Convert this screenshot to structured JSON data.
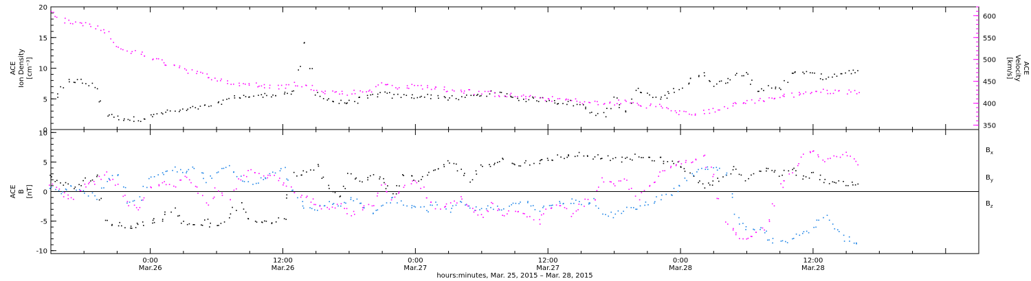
{
  "chart_data": {
    "type": "scatter",
    "x_axis": {
      "title": "hours:minutes, Mar. 25, 2015 – Mar. 28, 2015",
      "range_hours": [
        -9,
        75
      ],
      "ticks": [
        {
          "hours": 0,
          "time": "0:00",
          "date": "Mar.26"
        },
        {
          "hours": 12,
          "time": "12:00",
          "date": "Mar.26"
        },
        {
          "hours": 24,
          "time": "0:00",
          "date": "Mar.27"
        },
        {
          "hours": 36,
          "time": "12:00",
          "date": "Mar.27"
        },
        {
          "hours": 48,
          "time": "0:00",
          "date": "Mar.28"
        },
        {
          "hours": 60,
          "time": "12:00",
          "date": "Mar.28"
        }
      ]
    },
    "panels": [
      {
        "ylabel_lines": [
          "ACE",
          "Ion Density",
          "[cm⁻³]"
        ],
        "ylim": [
          0,
          20
        ],
        "yticks": [
          0,
          5,
          10,
          15,
          20
        ],
        "y2label_lines": [
          "ACE",
          "Velocity",
          "[km/s]"
        ],
        "y2lim": [
          340,
          620
        ],
        "y2ticks": [
          350,
          400,
          450,
          500,
          550,
          600
        ],
        "series": [
          {
            "axis": "left",
            "color": "#000000",
            "x": [
              -8.5,
              -7.5,
              -6.5,
              -5,
              -4,
              -3,
              -2,
              -1,
              0,
              1,
              2,
              3,
              4,
              5,
              6,
              7,
              8,
              9,
              10,
              11,
              12,
              13,
              14,
              15,
              16,
              17,
              18,
              19,
              20,
              21,
              22,
              23,
              24,
              25,
              26,
              27,
              28,
              29,
              30,
              31,
              32,
              33,
              34,
              35,
              36,
              37,
              38,
              39,
              40,
              41,
              42,
              43,
              44,
              46,
              47,
              48,
              49,
              50,
              51,
              52,
              53,
              54,
              55,
              56,
              57,
              58,
              59,
              60,
              61,
              62,
              63,
              64
            ],
            "y": [
              5.5,
              8,
              8,
              7,
              2.5,
              2,
              1.8,
              1.8,
              2.2,
              2.8,
              3,
              3.2,
              3.5,
              3.8,
              4.2,
              5,
              5.5,
              5.5,
              5.5,
              5.8,
              6,
              6,
              14,
              6,
              5,
              4.5,
              4.5,
              5,
              5.5,
              6,
              5.5,
              5.5,
              5.5,
              5.5,
              5.5,
              5.2,
              5.2,
              5.5,
              5.8,
              6,
              5.8,
              5.2,
              5,
              5,
              5,
              4.5,
              4.5,
              4,
              3,
              2.5,
              5,
              3,
              6.5,
              5,
              6,
              7,
              8.5,
              9,
              7.5,
              8,
              9,
              9.5,
              6,
              7,
              7,
              9,
              9.5,
              9,
              8.5,
              9,
              9.5,
              9.5
            ]
          },
          {
            "axis": "right",
            "color": "#ff00ff",
            "x": [
              -9,
              -8,
              -7,
              -6,
              -5,
              -4,
              -3,
              -2,
              -1,
              0,
              1,
              2,
              3,
              4,
              5,
              6,
              7,
              8,
              9,
              10,
              11,
              12,
              13,
              14,
              15,
              16,
              17,
              18,
              19,
              20,
              21,
              22,
              23,
              24,
              25,
              26,
              27,
              28,
              29,
              30,
              31,
              32,
              33,
              34,
              35,
              36,
              37,
              38,
              39,
              40,
              41,
              42,
              43,
              44,
              45,
              46,
              47,
              48,
              49,
              50,
              51,
              52,
              53,
              54,
              55,
              56,
              57,
              58,
              59,
              60,
              61,
              62,
              63,
              64
            ],
            "y": [
              605,
              590,
              585,
              580,
              575,
              560,
              530,
              520,
              515,
              505,
              495,
              490,
              480,
              470,
              465,
              455,
              450,
              445,
              445,
              440,
              438,
              440,
              445,
              440,
              435,
              428,
              425,
              425,
              428,
              432,
              445,
              440,
              438,
              440,
              438,
              435,
              432,
              430,
              428,
              425,
              422,
              420,
              418,
              415,
              412,
              412,
              410,
              408,
              405,
              402,
              400,
              402,
              405,
              398,
              396,
              395,
              385,
              380,
              376,
              380,
              386,
              392,
              400,
              405,
              408,
              412,
              415,
              420,
              425,
              428,
              428,
              428,
              428,
              428
            ]
          }
        ]
      },
      {
        "ylabel_lines": [
          "ACE",
          "B",
          "[nT]"
        ],
        "ylim": [
          -10.5,
          10.5
        ],
        "yticks": [
          -10,
          -5,
          0,
          5,
          10
        ],
        "zero_line": true,
        "series": [
          {
            "name": "Bx",
            "label_main": "B",
            "label_sub": "x",
            "color": "#000000",
            "x": [
              -9,
              -8,
              -7,
              -6,
              -5,
              -4,
              -3,
              -2,
              -1,
              0,
              1,
              2,
              3,
              4,
              5,
              6,
              7,
              8,
              9,
              10,
              11,
              12,
              13,
              14,
              15,
              16,
              17,
              18,
              19,
              20,
              21,
              22,
              23,
              24,
              25,
              26,
              27,
              28,
              29,
              30,
              31,
              32,
              33,
              34,
              35,
              36,
              37,
              38,
              39,
              40,
              41,
              42,
              43,
              44,
              46,
              47,
              48,
              49,
              50,
              51,
              52,
              53,
              54,
              55,
              56,
              57,
              58,
              59,
              60,
              61,
              62,
              63,
              64
            ],
            "y": [
              2.5,
              1.5,
              1,
              2,
              2.5,
              -5,
              -5.5,
              -6,
              -5.5,
              -5,
              -4.5,
              -3,
              -5,
              -5.5,
              -5,
              -6,
              -4,
              -2,
              -4.5,
              -5,
              -5,
              -4.5,
              3,
              3.5,
              4.5,
              1,
              -1,
              3,
              1.5,
              3,
              2,
              -0.5,
              3,
              2,
              3,
              4,
              5,
              4,
              2,
              4.5,
              5,
              5.5,
              4.5,
              5,
              5,
              5.5,
              6,
              6,
              6.5,
              6,
              6,
              5.5,
              5.5,
              6,
              5.5,
              5,
              4.5,
              3,
              1,
              1.5,
              3,
              4,
              2,
              3.5,
              4,
              3,
              4,
              2.5,
              3,
              2,
              1.5,
              1.5,
              1.5
            ]
          },
          {
            "name": "By",
            "label_main": "B",
            "label_sub": "y",
            "color": "#1a82e6",
            "x": [
              -9,
              -8,
              -7,
              -6,
              -5,
              -4,
              -3,
              -2,
              -1,
              0,
              1,
              2,
              3,
              4,
              5,
              6,
              7,
              8,
              9,
              10,
              11,
              12,
              13,
              14,
              15,
              16,
              17,
              18,
              19,
              20,
              21,
              22,
              23,
              24,
              25,
              26,
              27,
              28,
              29,
              30,
              31,
              32,
              33,
              34,
              35,
              36,
              37,
              38,
              39,
              40,
              41,
              42,
              43,
              44,
              46,
              47,
              48,
              49,
              50,
              51,
              52,
              53,
              54,
              55,
              56,
              57,
              58,
              59,
              60,
              61,
              62,
              63,
              64
            ],
            "y": [
              0.5,
              0,
              1,
              0,
              -1,
              2,
              3,
              -2,
              -1,
              2.5,
              3,
              4,
              3,
              4,
              2,
              3.5,
              4.5,
              2.5,
              1.5,
              2,
              3,
              4,
              0,
              -2.5,
              -3,
              -2,
              -2.5,
              -1,
              -2,
              -3.5,
              -2,
              -1,
              -2,
              -2.5,
              -3,
              -2,
              -3,
              -2,
              -2.5,
              -3,
              -2.5,
              -3,
              -2,
              -2,
              -3,
              -2.5,
              -2,
              -1.5,
              -2,
              -1.5,
              -3.5,
              -4,
              -3,
              -3,
              -1,
              -0.5,
              1,
              3,
              4,
              4.5,
              3,
              -4,
              -6,
              -6,
              -8,
              -8.5,
              -8,
              -7,
              -6,
              -4,
              -6,
              -8,
              -9
            ]
          },
          {
            "name": "Bz",
            "label_main": "B",
            "label_sub": "z",
            "color": "#ff00ff",
            "x": [
              -9,
              -8,
              -7,
              -6,
              -5,
              -4,
              -3,
              -2,
              -1,
              0,
              1,
              2,
              3,
              4,
              5,
              6,
              7,
              8,
              9,
              10,
              11,
              12,
              13,
              14,
              15,
              16,
              17,
              18,
              19,
              20,
              21,
              22,
              23,
              24,
              25,
              26,
              27,
              28,
              29,
              30,
              31,
              32,
              33,
              34,
              35,
              36,
              37,
              38,
              39,
              40,
              41,
              42,
              43,
              44,
              46,
              47,
              48,
              49,
              50,
              51,
              52,
              53,
              54,
              55,
              56,
              57,
              58,
              59,
              60,
              61,
              62,
              63,
              64
            ],
            "y": [
              1.5,
              -0.5,
              -1,
              1,
              1.5,
              3,
              1,
              -2,
              -3,
              0.5,
              2,
              1,
              2.5,
              1,
              -2,
              0.5,
              -1,
              2,
              4,
              3,
              2.5,
              1.5,
              0,
              -1,
              -2,
              -3,
              -2,
              -4,
              -3,
              -2,
              1,
              -1,
              1,
              2,
              -1,
              -3,
              -2,
              -1,
              -3,
              -4,
              -2,
              -4,
              -3,
              -4,
              -5,
              -3,
              -2,
              -4,
              -2,
              -1,
              2,
              1,
              2,
              -1,
              3,
              4,
              5,
              5,
              6,
              3,
              -5,
              -7,
              -8,
              -7,
              -5,
              1,
              3,
              6,
              7,
              5,
              6,
              6.5,
              5
            ]
          }
        ]
      }
    ]
  }
}
